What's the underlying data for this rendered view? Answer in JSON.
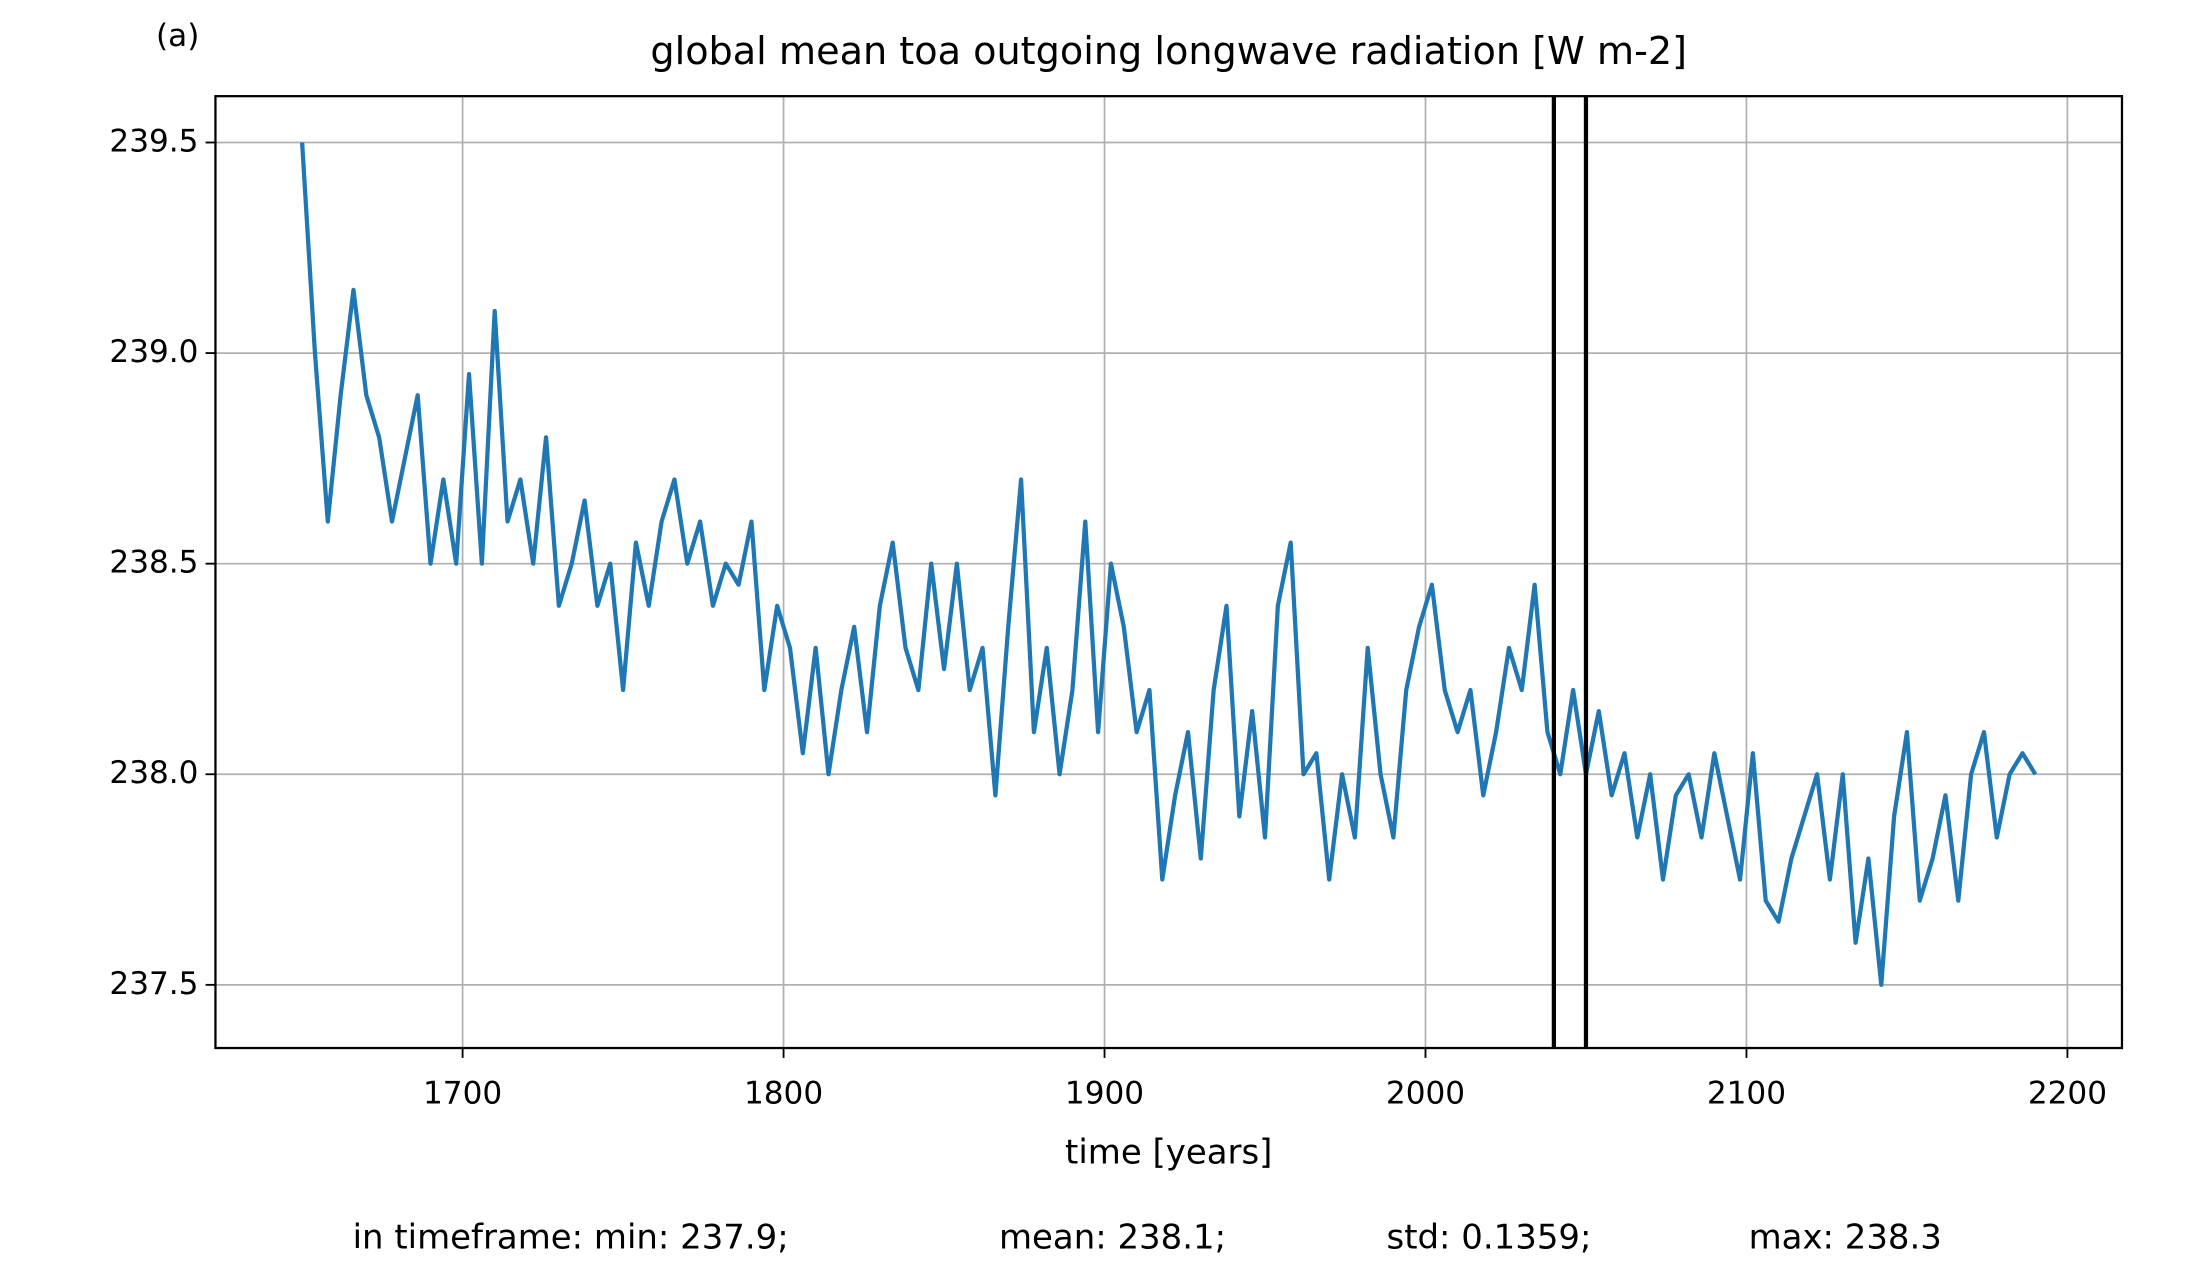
{
  "chart_data": {
    "type": "line",
    "panel_label": "(a)",
    "title": "global mean toa outgoing longwave radiation [W m-2]",
    "xlabel": "time [years]",
    "annotations": [
      "in timeframe: min: 237.9;",
      "mean: 238.1;",
      "std: 0.1359;",
      "max: 238.3"
    ],
    "x": [
      1650,
      1654,
      1658,
      1662,
      1666,
      1670,
      1674,
      1678,
      1682,
      1686,
      1690,
      1694,
      1698,
      1702,
      1706,
      1710,
      1714,
      1718,
      1722,
      1726,
      1730,
      1734,
      1738,
      1742,
      1746,
      1750,
      1754,
      1758,
      1762,
      1766,
      1770,
      1774,
      1778,
      1782,
      1786,
      1790,
      1794,
      1798,
      1802,
      1806,
      1810,
      1814,
      1818,
      1822,
      1826,
      1830,
      1834,
      1838,
      1842,
      1846,
      1850,
      1854,
      1858,
      1862,
      1866,
      1870,
      1874,
      1878,
      1882,
      1886,
      1890,
      1894,
      1898,
      1902,
      1906,
      1910,
      1914,
      1918,
      1922,
      1926,
      1930,
      1934,
      1938,
      1942,
      1946,
      1950,
      1954,
      1958,
      1962,
      1966,
      1970,
      1974,
      1978,
      1982,
      1986,
      1990,
      1994,
      1998,
      2002,
      2006,
      2010,
      2014,
      2018,
      2022,
      2026,
      2030,
      2034,
      2038,
      2042,
      2046,
      2050,
      2054,
      2058,
      2062,
      2066,
      2070,
      2074,
      2078,
      2082,
      2086,
      2090,
      2094,
      2098,
      2102,
      2106,
      2110,
      2114,
      2118,
      2122,
      2126,
      2130,
      2134,
      2138,
      2142,
      2146,
      2150,
      2154,
      2158,
      2162,
      2166,
      2170,
      2174,
      2178,
      2182,
      2186,
      2190
    ],
    "series": [
      {
        "color": "#1f77b4",
        "values": [
          239.5,
          239.0,
          238.6,
          238.9,
          239.15,
          238.9,
          238.8,
          238.6,
          238.75,
          238.9,
          238.5,
          238.7,
          238.5,
          238.95,
          238.5,
          239.1,
          238.6,
          238.7,
          238.5,
          238.8,
          238.4,
          238.5,
          238.65,
          238.4,
          238.5,
          238.2,
          238.55,
          238.4,
          238.6,
          238.7,
          238.5,
          238.6,
          238.4,
          238.5,
          238.45,
          238.6,
          238.2,
          238.4,
          238.3,
          238.05,
          238.3,
          238.0,
          238.2,
          238.35,
          238.1,
          238.4,
          238.55,
          238.3,
          238.2,
          238.5,
          238.25,
          238.5,
          238.2,
          238.3,
          237.95,
          238.35,
          238.7,
          238.1,
          238.3,
          238.0,
          238.2,
          238.6,
          238.1,
          238.5,
          238.35,
          238.1,
          238.2,
          237.75,
          237.95,
          238.1,
          237.8,
          238.2,
          238.4,
          237.9,
          238.15,
          237.85,
          238.4,
          238.55,
          238.0,
          238.05,
          237.75,
          238.0,
          237.85,
          238.3,
          238.0,
          237.85,
          238.2,
          238.35,
          238.45,
          238.2,
          238.1,
          238.2,
          237.95,
          238.1,
          238.3,
          238.2,
          238.45,
          238.1,
          238.0,
          238.2,
          238.0,
          238.15,
          237.95,
          238.05,
          237.85,
          238.0,
          237.75,
          237.95,
          238.0,
          237.85,
          238.05,
          237.9,
          237.75,
          238.05,
          237.7,
          237.65,
          237.8,
          237.9,
          238.0,
          237.75,
          238.0,
          237.6,
          237.8,
          237.5,
          237.9,
          238.1,
          237.7,
          237.8,
          237.95,
          237.7,
          238.0,
          238.1,
          237.85,
          238.0,
          238.05,
          238.0
        ]
      }
    ],
    "vlines": [
      2040,
      2050
    ],
    "xlim": [
      1623,
      2217
    ],
    "xticks": [
      1700,
      1800,
      1900,
      2000,
      2100,
      2200
    ],
    "ylim": [
      237.35,
      239.61
    ],
    "yticks": [
      237.5,
      238.0,
      238.5,
      239.0,
      239.5
    ],
    "ytick_labels": [
      "237.5",
      "238.0",
      "238.5",
      "239.0",
      "239.5"
    ],
    "grid": true
  }
}
